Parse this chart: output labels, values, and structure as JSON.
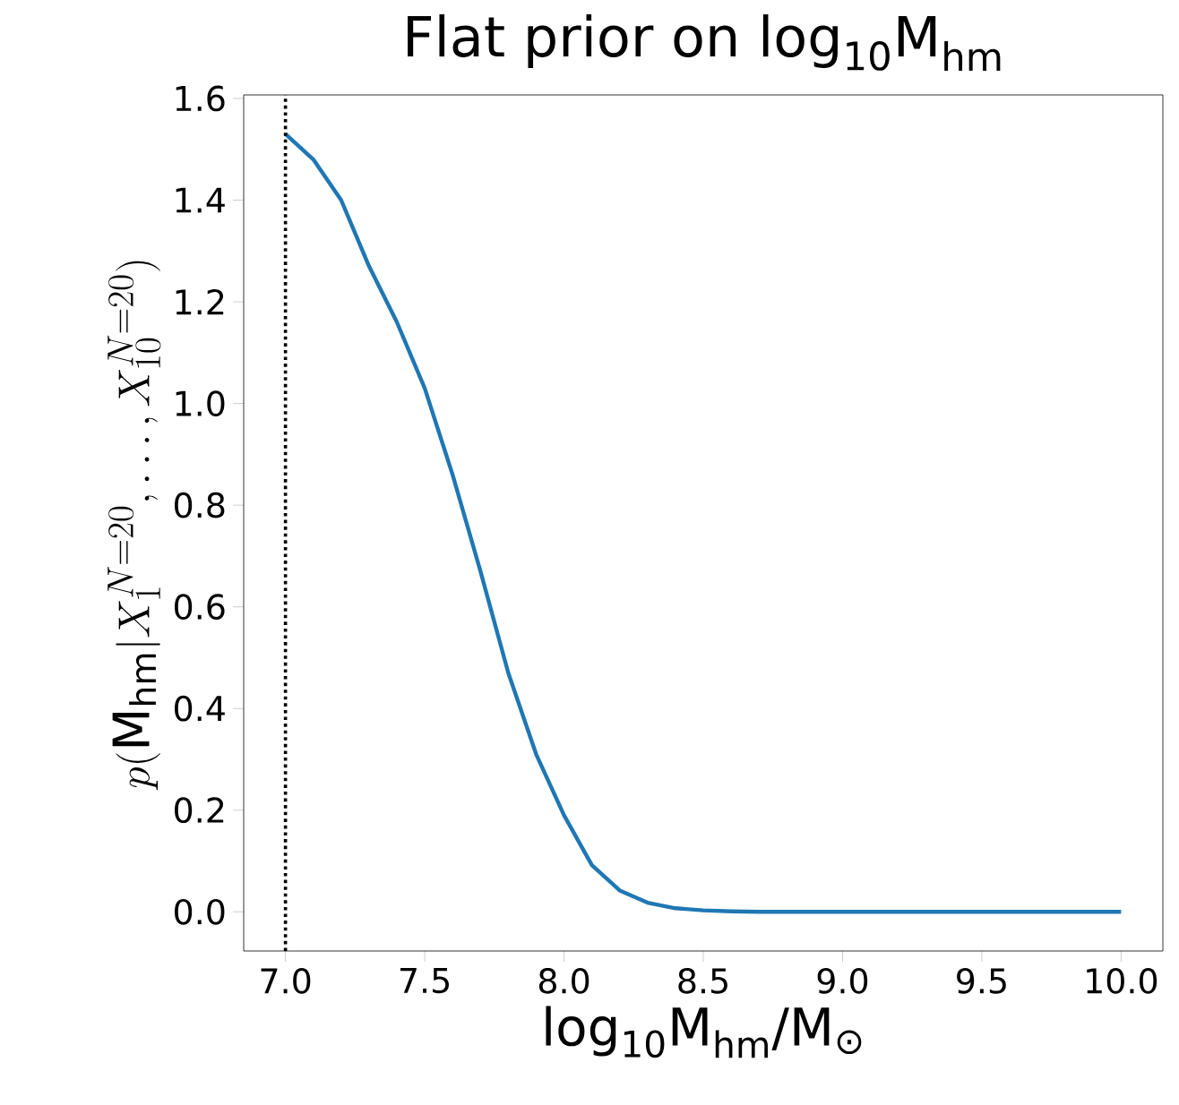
{
  "chart_data": {
    "type": "line",
    "title": "Flat prior on log$_{10}$M$_{hm}$",
    "xlabel": "log$_{10}$M$_{hm}$/M$_{⊙}$",
    "ylabel": "p(\\mathrm{M_{hm}}|X_1^{N=20},\\ldots,X_{10}^{N=20})",
    "x": [
      7.0,
      7.1,
      7.2,
      7.3,
      7.4,
      7.5,
      7.6,
      7.7,
      7.8,
      7.9,
      8.0,
      8.1,
      8.2,
      8.3,
      8.4,
      8.5,
      8.6,
      8.7,
      8.8,
      9.0,
      9.5,
      10.0
    ],
    "series": [
      {
        "color": "#1f77b4",
        "values": [
          1.53,
          1.48,
          1.4,
          1.27,
          1.16,
          1.03,
          0.86,
          0.67,
          0.47,
          0.31,
          0.19,
          0.092,
          0.042,
          0.018,
          0.007,
          0.003,
          0.001,
          0,
          0,
          0,
          0,
          0
        ]
      }
    ],
    "xlim": [
      6.85,
      10.15
    ],
    "ylim": [
      -0.077,
      1.607
    ],
    "xticks": [
      {
        "value": 7.0,
        "label": "7.0"
      },
      {
        "value": 7.5,
        "label": "7.5"
      },
      {
        "value": 8.0,
        "label": "8.0"
      },
      {
        "value": 8.5,
        "label": "8.5"
      },
      {
        "value": 9.0,
        "label": "9.0"
      },
      {
        "value": 9.5,
        "label": "9.5"
      },
      {
        "value": 10.0,
        "label": "10.0"
      }
    ],
    "yticks": [
      {
        "value": 0.0,
        "label": "0.0"
      },
      {
        "value": 0.2,
        "label": "0.2"
      },
      {
        "value": 0.4,
        "label": "0.4"
      },
      {
        "value": 0.6,
        "label": "0.6"
      },
      {
        "value": 0.8,
        "label": "0.8"
      },
      {
        "value": 1.0,
        "label": "1.0"
      },
      {
        "value": 1.2,
        "label": "1.2"
      },
      {
        "value": 1.4,
        "label": "1.4"
      },
      {
        "value": 1.6,
        "label": "1.6"
      }
    ],
    "ref_lines": [
      {
        "axis": "x",
        "value": 7.0,
        "color": "#000000",
        "line_style": "dotted"
      }
    ],
    "grid": false,
    "marker": "none",
    "line_style": "solid"
  }
}
